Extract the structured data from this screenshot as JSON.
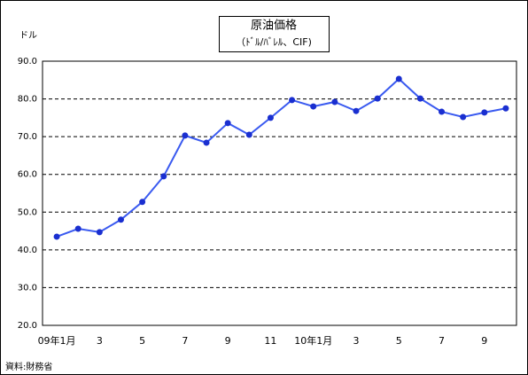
{
  "chart_data": {
    "type": "line",
    "title": "原油価格",
    "subtitle": "（ﾄﾞﾙ/ﾊﾞﾚﾙ、CIF)",
    "y_unit": "ドル",
    "source": "資料:財務省",
    "categories": [
      "09年1月",
      null,
      "3",
      null,
      "5",
      null,
      "7",
      null,
      "9",
      null,
      "11",
      null,
      "10年1月",
      null,
      "3",
      null,
      "5",
      null,
      "7",
      null,
      "9",
      null
    ],
    "series": [
      {
        "name": "原油価格",
        "color": "#3a5af0",
        "values": [
          43.5,
          45.6,
          44.7,
          48.0,
          52.7,
          59.5,
          70.3,
          68.4,
          73.6,
          70.5,
          75.0,
          79.7,
          78.0,
          79.2,
          76.8,
          80.1,
          85.3,
          80.1,
          76.6,
          75.2,
          76.4,
          77.5
        ]
      }
    ],
    "marker_color": "#1a2fd0",
    "ylim": [
      20,
      90
    ],
    "yticks": [
      {
        "value": 20,
        "label": "20.0"
      },
      {
        "value": 30,
        "label": "30.0"
      },
      {
        "value": 40,
        "label": "40.0"
      },
      {
        "value": 50,
        "label": "50.0"
      },
      {
        "value": 60,
        "label": "60.0"
      },
      {
        "value": 70,
        "label": "70.0"
      },
      {
        "value": 80,
        "label": "80.0"
      },
      {
        "value": 90,
        "label": "90.0"
      }
    ],
    "grid": true
  }
}
